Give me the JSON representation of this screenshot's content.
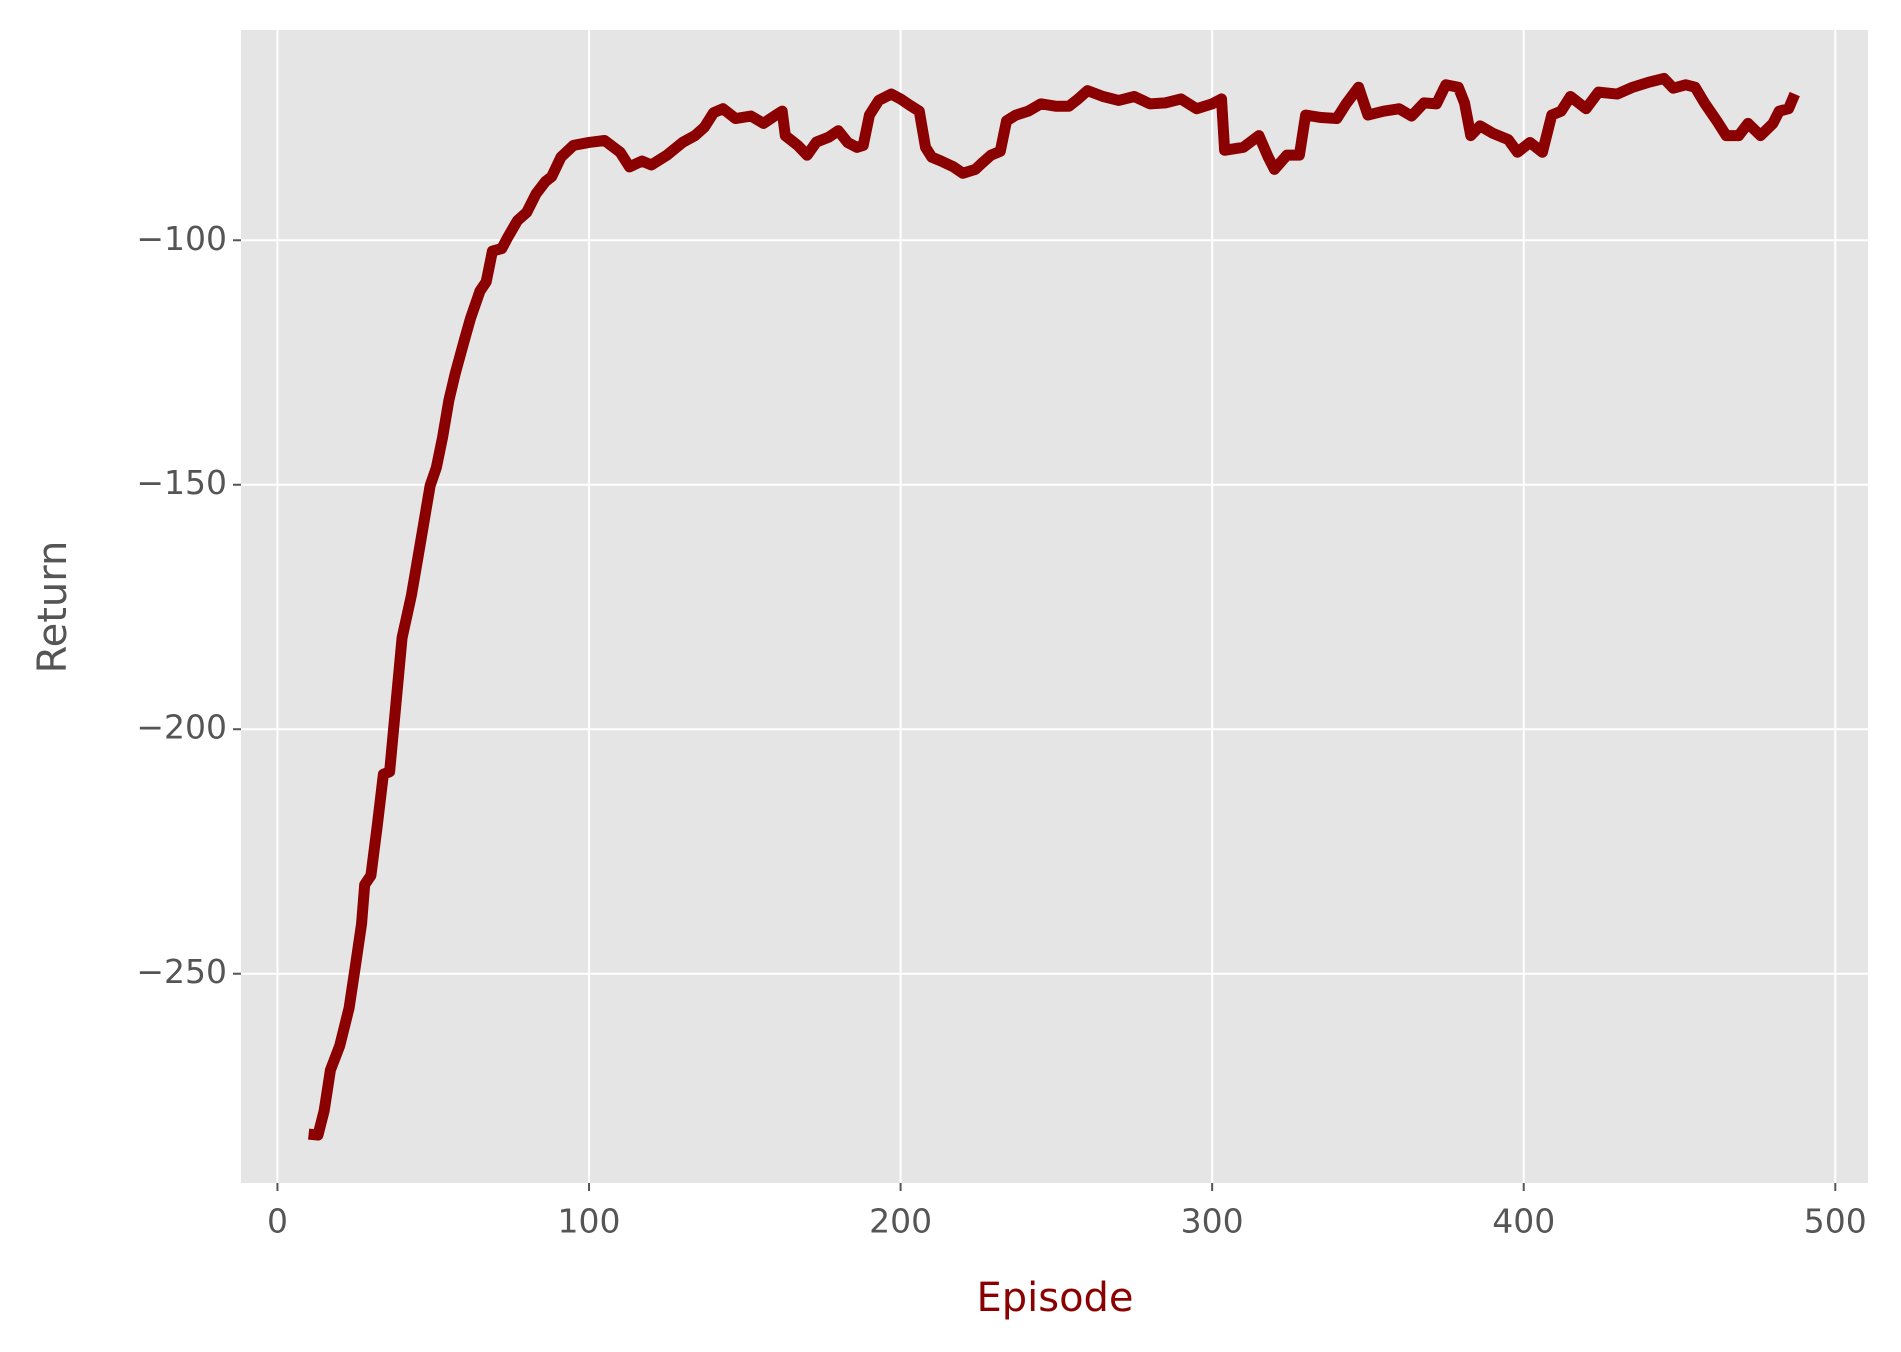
{
  "chart_data": {
    "type": "line",
    "xlabel": "Episode",
    "ylabel": "Return",
    "xlim": [
      -11.7,
      510.5
    ],
    "ylim": [
      -292.8,
      -57
    ],
    "xticks": [
      0,
      100,
      200,
      300,
      400,
      500
    ],
    "yticks": [
      {
        "value": -250,
        "label": "−250"
      },
      {
        "value": -200,
        "label": "−200"
      },
      {
        "value": -150,
        "label": "−150"
      },
      {
        "value": -100,
        "label": "−100"
      }
    ],
    "grid": true,
    "x": [
      10,
      13,
      15,
      17,
      20,
      23,
      25,
      27,
      28,
      30,
      32,
      34,
      36,
      38,
      40,
      43,
      45,
      47,
      49,
      51,
      53,
      55,
      57,
      60,
      62,
      65,
      67,
      69,
      72,
      74,
      77,
      80,
      83,
      86,
      88,
      91,
      95,
      100,
      105,
      110,
      113,
      117,
      120,
      125,
      130,
      134,
      137,
      140,
      143,
      147,
      152,
      156,
      160,
      162,
      163,
      167,
      170,
      173,
      177,
      180,
      183,
      186,
      188,
      190,
      193,
      197,
      200,
      203,
      206,
      208,
      210,
      213,
      217,
      220,
      224,
      226,
      229,
      232,
      234,
      237,
      241,
      245,
      250,
      254,
      257,
      260,
      265,
      270,
      275,
      280,
      285,
      290,
      295,
      300,
      303,
      304,
      310,
      315,
      318,
      320,
      324,
      328,
      330,
      335,
      340,
      343,
      347,
      350,
      355,
      360,
      364,
      368,
      372,
      375,
      379,
      381,
      383,
      386,
      390,
      395,
      398,
      402,
      406,
      409,
      412,
      415,
      420,
      424,
      430,
      435,
      440,
      445,
      448,
      452,
      455,
      458,
      462,
      465,
      469,
      472,
      476,
      480,
      482,
      485,
      487
    ],
    "series": [
      {
        "name": "Return",
        "color": "#8b0000",
        "values": [
          -282.8,
          -283,
          -278,
          -269.7,
          -264.7,
          -257,
          -248.5,
          -239.8,
          -231.8,
          -229.9,
          -219.9,
          -209.2,
          -208.7,
          -195,
          -181.3,
          -172.6,
          -165.2,
          -157.7,
          -150.2,
          -146.5,
          -140.3,
          -132.8,
          -127.4,
          -120.4,
          -115.9,
          -110.4,
          -108.5,
          -102.2,
          -101.7,
          -99.3,
          -96,
          -94.3,
          -90.5,
          -88,
          -87,
          -83,
          -80.6,
          -80,
          -79.6,
          -82,
          -85,
          -83.8,
          -84.6,
          -82.6,
          -80,
          -78.6,
          -76.9,
          -73.9,
          -73.1,
          -75.1,
          -74.6,
          -76.1,
          -74.4,
          -73.6,
          -78.6,
          -80.6,
          -82.6,
          -79.9,
          -78.9,
          -77.6,
          -80,
          -81,
          -80.6,
          -74.4,
          -71.4,
          -70.1,
          -71.1,
          -72.4,
          -73.6,
          -81,
          -83,
          -83.8,
          -85,
          -86.3,
          -85.5,
          -84.3,
          -82.6,
          -81.8,
          -75.6,
          -74.4,
          -73.6,
          -72.1,
          -72.6,
          -72.6,
          -71.1,
          -69.4,
          -70.6,
          -71.4,
          -70.6,
          -72.1,
          -71.9,
          -71.1,
          -73.1,
          -72.1,
          -71.1,
          -81.6,
          -81,
          -78.6,
          -83,
          -85.5,
          -82.6,
          -82.6,
          -74.4,
          -74.9,
          -75.1,
          -72.1,
          -68.7,
          -74.4,
          -73.6,
          -73.1,
          -74.6,
          -71.9,
          -72.1,
          -68.2,
          -68.7,
          -71.9,
          -78.6,
          -76.6,
          -78.1,
          -79.4,
          -82,
          -80,
          -82,
          -74.4,
          -73.6,
          -70.6,
          -73.1,
          -69.7,
          -70.1,
          -68.7,
          -67.7,
          -66.9,
          -68.9,
          -68.2,
          -68.7,
          -71.9,
          -75.6,
          -78.6,
          -78.6,
          -76.1,
          -78.6,
          -76.1,
          -73.6,
          -73.1,
          -70.1
        ]
      }
    ]
  }
}
